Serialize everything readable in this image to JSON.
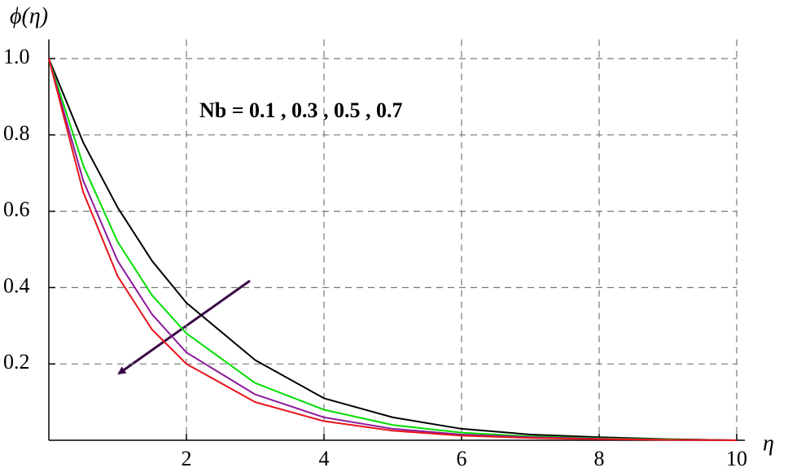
{
  "chart_data": {
    "type": "line",
    "y_label": "ϕ(η)",
    "x_label": "η",
    "annotation": "Nb = 0.1 , 0.3 , 0.5 , 0.7",
    "x": [
      0,
      0.5,
      1,
      1.5,
      2,
      3,
      4,
      5,
      6,
      7,
      8,
      9,
      10
    ],
    "series": [
      {
        "color": "#000000",
        "values": [
          1,
          0.78,
          0.61,
          0.47,
          0.36,
          0.21,
          0.11,
          0.06,
          0.03,
          0.015,
          0.008,
          0.003,
          0
        ]
      },
      {
        "color": "#00dd00",
        "values": [
          1,
          0.72,
          0.52,
          0.38,
          0.28,
          0.15,
          0.08,
          0.04,
          0.02,
          0.01,
          0.005,
          0.002,
          0
        ]
      },
      {
        "color": "#8b1a9b",
        "values": [
          1,
          0.68,
          0.47,
          0.33,
          0.23,
          0.12,
          0.06,
          0.03,
          0.015,
          0.008,
          0.004,
          0.001,
          0
        ]
      },
      {
        "color": "#e8141b",
        "values": [
          1,
          0.65,
          0.43,
          0.29,
          0.2,
          0.1,
          0.05,
          0.025,
          0.012,
          0.006,
          0.003,
          0.001,
          0
        ]
      }
    ],
    "xlim": [
      0,
      10
    ],
    "ylim": [
      0,
      1.05
    ],
    "xticks": [
      2,
      4,
      6,
      8,
      10
    ],
    "yticks": [
      0.2,
      0.4,
      0.6,
      0.8,
      {
        "value": 1,
        "label": "1.0"
      }
    ],
    "grid": true
  }
}
